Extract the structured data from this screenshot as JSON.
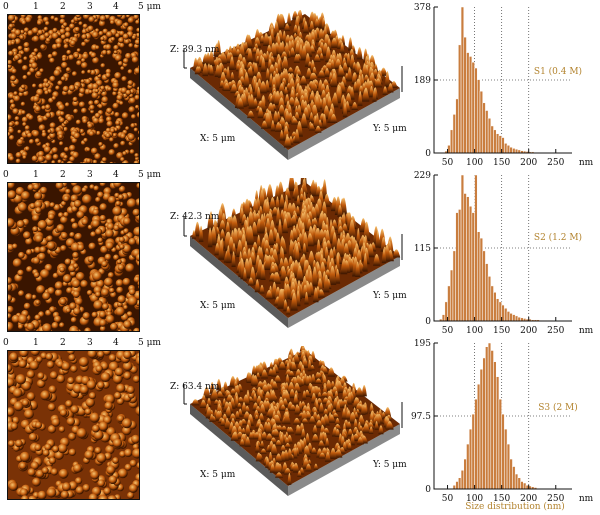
{
  "colors": {
    "afm_dark": "#3a1500",
    "afm_mid": "#c05a0c",
    "afm_light": "#f7c26e",
    "bar": "#c97d3e",
    "bar_edge": "#ffffff",
    "sample_label": "#b3842f",
    "axis": "#111111"
  },
  "ruler": {
    "ticks": [
      "0",
      "1",
      "2",
      "3",
      "4"
    ],
    "end_label": "5 μm"
  },
  "rows": [
    {
      "z_label": "Z: 39.3 nm",
      "x_label": "X: 5 μm",
      "y_label": "Y: 5 μm",
      "sample_label": "S1 (0.4 M)"
    },
    {
      "z_label": "Z: 42.3 nm",
      "x_label": "X: 5 μm",
      "y_label": "Y: 5 μm",
      "sample_label": "S2 (1.2 M)"
    },
    {
      "z_label": "Z: 63.4 nm",
      "x_label": "X: 5 μm",
      "y_label": "Y: 5 μm",
      "sample_label": "S3 (2 M)"
    }
  ],
  "chart_data": [
    {
      "type": "bar",
      "title": "",
      "xlabel": "",
      "ylabel": "",
      "xlim": [
        25,
        280
      ],
      "ylim": [
        0,
        378
      ],
      "y_ticks": [
        "0",
        "189",
        "378"
      ],
      "x_ticks": [
        "50",
        "100",
        "150",
        "200",
        "250"
      ],
      "x_unit": "nm",
      "bin_width": 5,
      "bin_starts": [
        45,
        50,
        55,
        60,
        65,
        70,
        75,
        80,
        85,
        90,
        95,
        100,
        105,
        110,
        115,
        120,
        125,
        130,
        135,
        140,
        145,
        150,
        155,
        160,
        165,
        170,
        175,
        180,
        185,
        190,
        195,
        200,
        205,
        210,
        215,
        220,
        225,
        230,
        235,
        240
      ],
      "values": [
        5,
        20,
        60,
        100,
        140,
        280,
        378,
        300,
        260,
        250,
        235,
        220,
        190,
        160,
        130,
        110,
        90,
        70,
        60,
        50,
        45,
        40,
        25,
        20,
        15,
        12,
        10,
        8,
        6,
        5,
        4,
        3,
        3,
        2,
        2,
        1,
        1,
        1,
        1,
        1
      ]
    },
    {
      "type": "bar",
      "title": "",
      "xlabel": "",
      "ylabel": "",
      "xlim": [
        25,
        280
      ],
      "ylim": [
        0,
        229
      ],
      "y_ticks": [
        "0",
        "115",
        "229"
      ],
      "x_ticks": [
        "50",
        "100",
        "150",
        "200",
        "250"
      ],
      "x_unit": "nm",
      "bin_width": 5,
      "bin_starts": [
        35,
        40,
        45,
        50,
        55,
        60,
        65,
        70,
        75,
        80,
        85,
        90,
        95,
        100,
        105,
        110,
        115,
        120,
        125,
        130,
        135,
        140,
        145,
        150,
        155,
        160,
        165,
        170,
        175,
        180,
        185,
        190,
        195,
        200,
        205,
        210,
        215,
        220,
        225,
        230,
        235,
        240
      ],
      "values": [
        3,
        10,
        30,
        55,
        80,
        110,
        170,
        175,
        229,
        200,
        195,
        180,
        170,
        229,
        140,
        130,
        110,
        90,
        70,
        55,
        45,
        35,
        30,
        25,
        20,
        15,
        12,
        10,
        8,
        6,
        5,
        4,
        3,
        3,
        2,
        2,
        2,
        1,
        1,
        1,
        1,
        1
      ]
    },
    {
      "type": "bar",
      "title": "",
      "xlabel": "",
      "ylabel": "",
      "xlim": [
        25,
        280
      ],
      "ylim": [
        0,
        195
      ],
      "y_ticks": [
        "0",
        "97.5",
        "195"
      ],
      "x_ticks": [
        "50",
        "100",
        "150",
        "200",
        "250"
      ],
      "x_unit": "nm",
      "bin_width": 5,
      "bin_starts": [
        60,
        65,
        70,
        75,
        80,
        85,
        90,
        95,
        100,
        105,
        110,
        115,
        120,
        125,
        130,
        135,
        140,
        145,
        150,
        155,
        160,
        165,
        170,
        175,
        180,
        185,
        190,
        195,
        200,
        205,
        210
      ],
      "values": [
        5,
        10,
        15,
        25,
        40,
        60,
        80,
        100,
        120,
        140,
        160,
        175,
        190,
        195,
        185,
        170,
        150,
        120,
        100,
        80,
        60,
        40,
        30,
        20,
        15,
        10,
        8,
        5,
        4,
        3,
        2
      ]
    }
  ],
  "x_caption": "Size distribution (nm)"
}
